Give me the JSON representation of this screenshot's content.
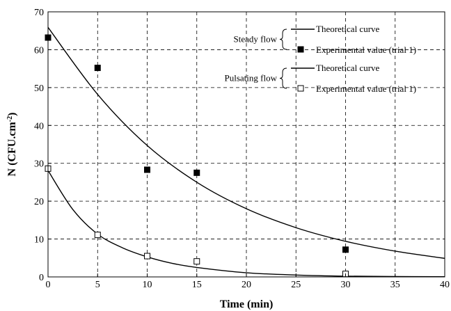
{
  "chart_data": {
    "type": "scatter",
    "xlabel": "Time (min)",
    "ylabel_main": "N (CFU.cm",
    "ylabel_sup": "-2",
    "ylabel_close": ")",
    "xlim": [
      0,
      40
    ],
    "ylim": [
      0,
      70
    ],
    "x_ticks": [
      0,
      5,
      10,
      15,
      20,
      25,
      30,
      35,
      40
    ],
    "y_ticks": [
      0,
      10,
      20,
      30,
      40,
      50,
      60,
      70
    ],
    "grid": true,
    "legend_position": "top-right",
    "legend_groups": [
      {
        "group": "Steady flow",
        "curve_label": "Theoretical curve",
        "points_label": "Experimental value (trial 1)",
        "marker": "filled-square"
      },
      {
        "group": "Pulsating flow",
        "curve_label": "Theoretical curve",
        "points_label": "Experimental value (trial 1)",
        "marker": "open-square"
      }
    ],
    "series": [
      {
        "kind": "curve",
        "group": "Steady flow",
        "x": [
          0,
          5,
          10,
          15,
          20,
          25,
          30,
          35,
          40
        ],
        "y": [
          65.9,
          48.2,
          34.7,
          25.0,
          18.0,
          13.0,
          9.4,
          6.8,
          4.9
        ]
      },
      {
        "kind": "points",
        "group": "Steady flow",
        "marker": "filled-square",
        "x": [
          0,
          5,
          10,
          15,
          30
        ],
        "y": [
          63.2,
          55.2,
          28.3,
          27.5,
          7.2
        ]
      },
      {
        "kind": "curve",
        "group": "Pulsating flow",
        "x": [
          0,
          2.5,
          5,
          7.5,
          10,
          12.5,
          15,
          20,
          25,
          30,
          35,
          40
        ],
        "y": [
          28.1,
          17.8,
          11.3,
          7.7,
          5.3,
          3.6,
          2.5,
          1.1,
          0.5,
          0.2,
          0.1,
          0.05
        ]
      },
      {
        "kind": "points",
        "group": "Pulsating flow",
        "marker": "open-square",
        "x": [
          0,
          5,
          10,
          15,
          30
        ],
        "y": [
          28.6,
          11.1,
          5.5,
          4.1,
          0.8
        ]
      }
    ]
  }
}
